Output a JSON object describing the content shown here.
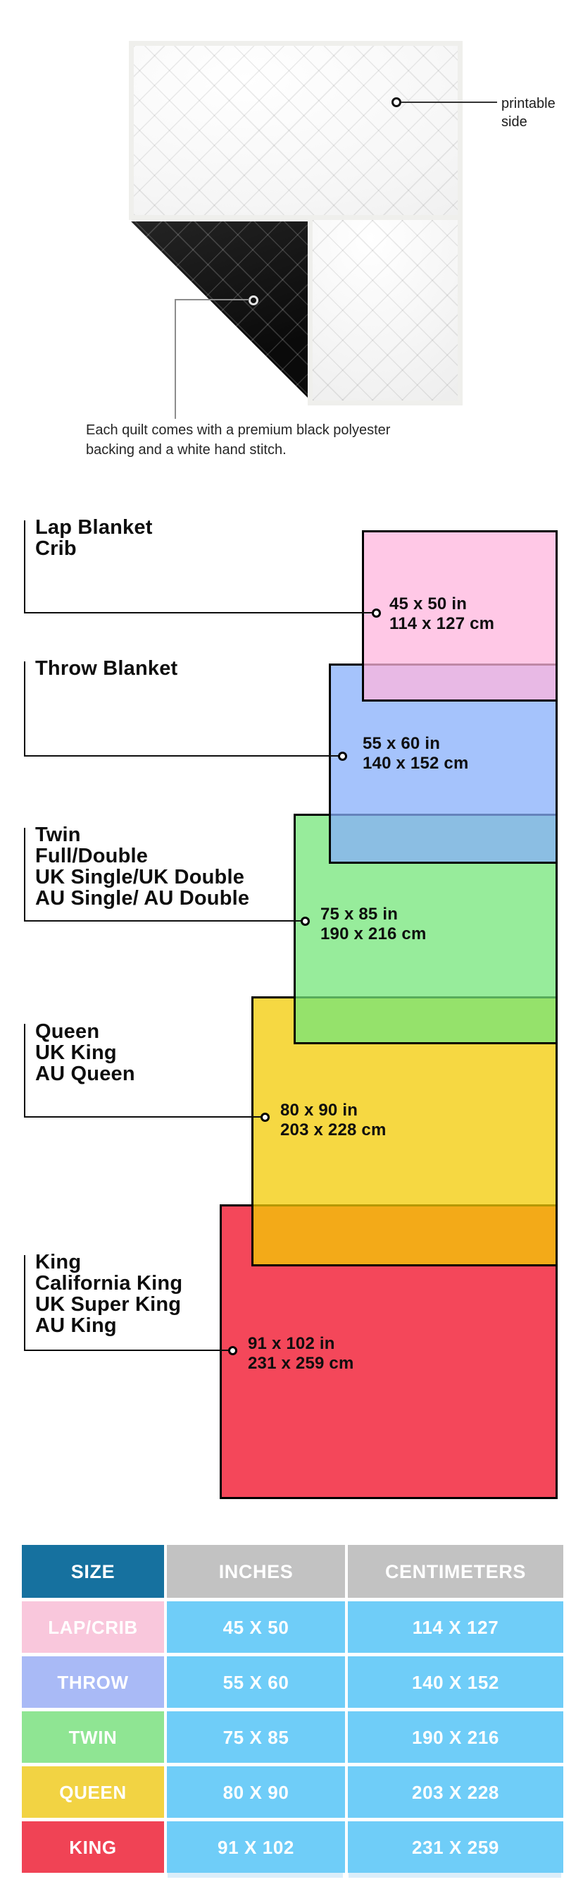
{
  "hero": {
    "printable_line1": "printable",
    "printable_line2": "side",
    "caption_line1": "Each quilt comes with a premium black polyester",
    "caption_line2": "backing and a white hand stitch."
  },
  "diagram": {
    "border_color": "#000000",
    "sizes": [
      {
        "id": "lap",
        "labels": [
          "Lap Blanket",
          "Crib"
        ],
        "inches_label": "45 x 50 in",
        "cm_label": "114 x 127 cm",
        "fill_color": "#FFB6DE",
        "fill_alpha": "0.75"
      },
      {
        "id": "throw",
        "labels": [
          "Throw Blanket"
        ],
        "inches_label": "55 x 60 in",
        "cm_label": "140 x 152 cm",
        "fill_color": "#87AFFB",
        "fill_alpha": "0.75"
      },
      {
        "id": "twin",
        "labels": [
          "Twin",
          "Full/Double",
          "UK Single/UK Double",
          "AU Single/ AU Double"
        ],
        "inches_label": "75 x 85 in",
        "cm_label": "190 x 216 cm",
        "fill_color": "#74E67A",
        "fill_alpha": "0.75"
      },
      {
        "id": "queen",
        "labels": [
          "Queen",
          "UK King",
          "AU Queen"
        ],
        "inches_label": "80 x 90 in",
        "cm_label": "203 x 228 cm",
        "fill_color": "#F3CB03",
        "fill_alpha": "0.75"
      },
      {
        "id": "king",
        "labels": [
          "King",
          "California King",
          "UK Super King",
          "AU King"
        ],
        "inches_label": "91 x 102 in",
        "cm_label": "231 x 259 cm",
        "fill_color": "#F00A23",
        "fill_alpha": "0.75"
      }
    ]
  },
  "table": {
    "headers": {
      "size": "SIZE",
      "inches": "INCHES",
      "centimeters": "CENTIMETERS"
    },
    "header_size_bg": "#16719F",
    "header_metric_bg": "#C2C2C2",
    "value_cell_bg": "#6FCDF8",
    "rows": [
      {
        "label": "LAP/CRIB",
        "inches": "45 X 50",
        "cm": "114 X 127",
        "label_bg": "#F9C7DC"
      },
      {
        "label": "THROW",
        "inches": "55 X 60",
        "cm": "140 X 152",
        "label_bg": "#A9BAF6"
      },
      {
        "label": "TWIN",
        "inches": "75 X 85",
        "cm": "190 X 216",
        "label_bg": "#8FE593"
      },
      {
        "label": "QUEEN",
        "inches": "80 X 90",
        "cm": "203 X 228",
        "label_bg": "#F2D343"
      },
      {
        "label": "KING",
        "inches": "91 X 102",
        "cm": "231 X 259",
        "label_bg": "#F04355"
      }
    ]
  }
}
